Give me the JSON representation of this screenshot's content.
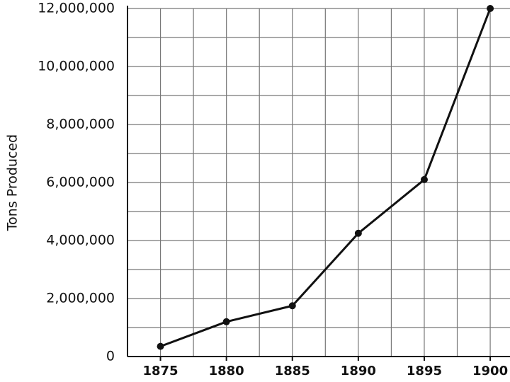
{
  "chart_data": {
    "type": "line",
    "y_label": "Tons Produced",
    "x": [
      1875,
      1880,
      1885,
      1890,
      1895,
      1900
    ],
    "series": [
      {
        "color": "#111111",
        "values": [
          350000,
          1200000,
          1750000,
          4250000,
          6100000,
          12000000
        ]
      }
    ],
    "xlim": [
      1872.5,
      1901.5
    ],
    "xticks": [
      1875,
      1880,
      1885,
      1890,
      1895,
      1900
    ],
    "x_minor_ticks": [
      1877.5,
      1882.5,
      1887.5,
      1892.5,
      1897.5
    ],
    "ylim": [
      0,
      12000000
    ],
    "yticks": [
      0,
      {
        "value": 2000000,
        "label": "2,000,000"
      },
      {
        "value": 4000000,
        "label": "4,000,000"
      },
      {
        "value": 6000000,
        "label": "6,000,000"
      },
      {
        "value": 8000000,
        "label": "8,000,000"
      },
      {
        "value": 10000000,
        "label": "10,000,000"
      },
      {
        "value": 12000000,
        "label": "12,000,000"
      }
    ],
    "y_minor_ticks": [
      1000000,
      3000000,
      5000000,
      7000000,
      9000000,
      11000000
    ],
    "grid": true
  }
}
